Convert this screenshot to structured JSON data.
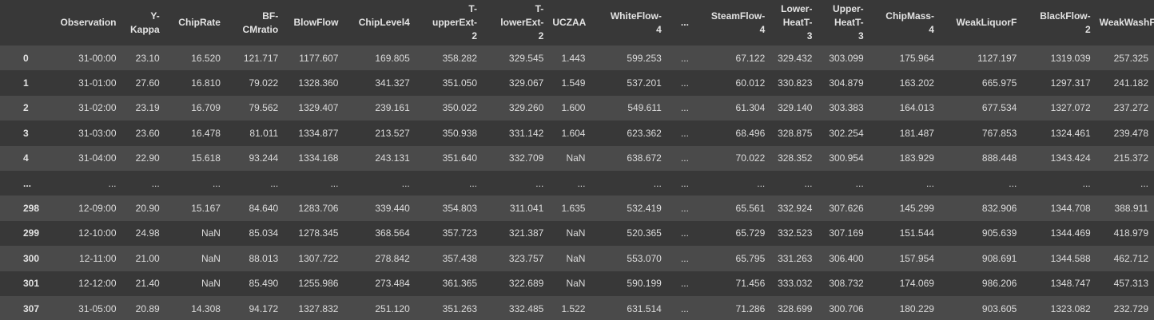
{
  "columns": [
    {
      "lines": [
        ""
      ]
    },
    {
      "lines": [
        "Observation"
      ]
    },
    {
      "lines": [
        "Y-",
        "Kappa"
      ]
    },
    {
      "lines": [
        "ChipRate"
      ]
    },
    {
      "lines": [
        "BF-",
        "CMratio"
      ]
    },
    {
      "lines": [
        "BlowFlow"
      ]
    },
    {
      "lines": [
        "ChipLevel4"
      ]
    },
    {
      "lines": [
        "T-",
        "upperExt-",
        "2"
      ]
    },
    {
      "lines": [
        "T-",
        "lowerExt-",
        "2"
      ]
    },
    {
      "lines": [
        "UCZAA"
      ]
    },
    {
      "lines": [
        "WhiteFlow-",
        "4"
      ]
    },
    {
      "lines": [
        "..."
      ]
    },
    {
      "lines": [
        "SteamFlow-",
        "4"
      ]
    },
    {
      "lines": [
        "Lower-",
        "HeatT-",
        "3"
      ]
    },
    {
      "lines": [
        "Upper-",
        "HeatT-",
        "3"
      ]
    },
    {
      "lines": [
        "ChipMass-",
        "4"
      ]
    },
    {
      "lines": [
        "WeakLiquorF"
      ]
    },
    {
      "lines": [
        "BlackFlow-",
        "2"
      ]
    },
    {
      "lines": [
        "WeakWashF"
      ]
    }
  ],
  "rows": [
    [
      "0",
      "31-00:00",
      "23.10",
      "16.520",
      "121.717",
      "1177.607",
      "169.805",
      "358.282",
      "329.545",
      "1.443",
      "599.253",
      "...",
      "67.122",
      "329.432",
      "303.099",
      "175.964",
      "1127.197",
      "1319.039",
      "257.325"
    ],
    [
      "1",
      "31-01:00",
      "27.60",
      "16.810",
      "79.022",
      "1328.360",
      "341.327",
      "351.050",
      "329.067",
      "1.549",
      "537.201",
      "...",
      "60.012",
      "330.823",
      "304.879",
      "163.202",
      "665.975",
      "1297.317",
      "241.182"
    ],
    [
      "2",
      "31-02:00",
      "23.19",
      "16.709",
      "79.562",
      "1329.407",
      "239.161",
      "350.022",
      "329.260",
      "1.600",
      "549.611",
      "...",
      "61.304",
      "329.140",
      "303.383",
      "164.013",
      "677.534",
      "1327.072",
      "237.272"
    ],
    [
      "3",
      "31-03:00",
      "23.60",
      "16.478",
      "81.011",
      "1334.877",
      "213.527",
      "350.938",
      "331.142",
      "1.604",
      "623.362",
      "...",
      "68.496",
      "328.875",
      "302.254",
      "181.487",
      "767.853",
      "1324.461",
      "239.478"
    ],
    [
      "4",
      "31-04:00",
      "22.90",
      "15.618",
      "93.244",
      "1334.168",
      "243.131",
      "351.640",
      "332.709",
      "NaN",
      "638.672",
      "...",
      "70.022",
      "328.352",
      "300.954",
      "183.929",
      "888.448",
      "1343.424",
      "215.372"
    ],
    [
      "...",
      "...",
      "...",
      "...",
      "...",
      "...",
      "...",
      "...",
      "...",
      "...",
      "...",
      "...",
      "...",
      "...",
      "...",
      "...",
      "...",
      "...",
      "..."
    ],
    [
      "298",
      "12-09:00",
      "20.90",
      "15.167",
      "84.640",
      "1283.706",
      "339.440",
      "354.803",
      "311.041",
      "1.635",
      "532.419",
      "...",
      "65.561",
      "332.924",
      "307.626",
      "145.299",
      "832.906",
      "1344.708",
      "388.911"
    ],
    [
      "299",
      "12-10:00",
      "24.98",
      "NaN",
      "85.034",
      "1278.345",
      "368.564",
      "357.723",
      "321.387",
      "NaN",
      "520.365",
      "...",
      "65.729",
      "332.523",
      "307.169",
      "151.544",
      "905.639",
      "1344.469",
      "418.979"
    ],
    [
      "300",
      "12-11:00",
      "21.00",
      "NaN",
      "88.013",
      "1307.722",
      "278.842",
      "357.438",
      "323.757",
      "NaN",
      "553.070",
      "...",
      "65.795",
      "331.263",
      "306.400",
      "157.954",
      "908.691",
      "1344.588",
      "462.712"
    ],
    [
      "301",
      "12-12:00",
      "21.40",
      "NaN",
      "85.490",
      "1255.986",
      "273.484",
      "361.365",
      "322.689",
      "NaN",
      "590.199",
      "...",
      "71.456",
      "333.032",
      "308.732",
      "174.069",
      "986.206",
      "1348.747",
      "457.313"
    ],
    [
      "307",
      "31-05:00",
      "20.89",
      "14.308",
      "94.172",
      "1327.832",
      "251.120",
      "351.263",
      "332.485",
      "1.522",
      "631.514",
      "...",
      "71.286",
      "328.699",
      "300.706",
      "180.229",
      "903.605",
      "1323.082",
      "232.729"
    ]
  ],
  "colors": {
    "background": "#383838",
    "row_stripe": "#4a4a4a",
    "text": "#e0e0e0"
  }
}
